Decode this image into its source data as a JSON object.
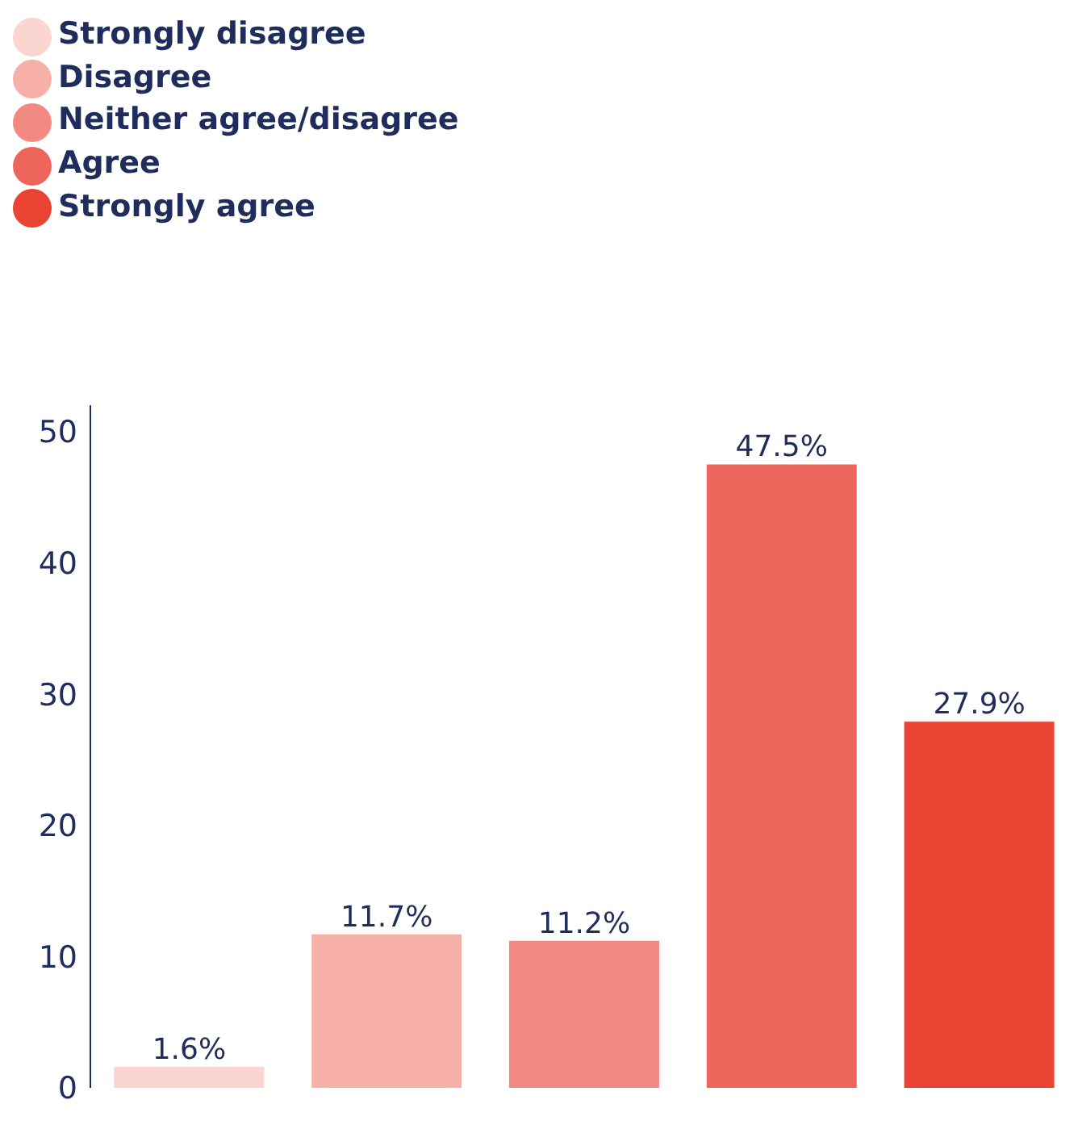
{
  "chart_data": {
    "type": "bar",
    "stacked": true,
    "categories": [
      null,
      null,
      null,
      null,
      null
    ],
    "series": [
      {
        "name": "Strongly disagree",
        "color": "#fbd5cf",
        "values": [
          1.6,
          null,
          null,
          null,
          null
        ],
        "value_labels": [
          "1.6%",
          null,
          null,
          null,
          null
        ]
      },
      {
        "name": "Disagree",
        "color": "#f7b0a8",
        "values": [
          null,
          11.7,
          null,
          null,
          null
        ],
        "value_labels": [
          null,
          "11.7%",
          null,
          null,
          null
        ]
      },
      {
        "name": "Neither agree/disagree",
        "color": "#f38a82",
        "values": [
          null,
          null,
          11.2,
          null,
          null
        ],
        "value_labels": [
          null,
          null,
          "11.2%",
          null,
          null
        ]
      },
      {
        "name": "Agree",
        "color": "#ee665b",
        "values": [
          null,
          null,
          null,
          47.5,
          null
        ],
        "value_labels": [
          null,
          null,
          null,
          "47.5%",
          null
        ]
      },
      {
        "name": "Strongly agree",
        "color": "#ea4333",
        "values": [
          null,
          null,
          null,
          null,
          27.9
        ],
        "value_labels": [
          null,
          null,
          null,
          null,
          "27.9%"
        ]
      }
    ],
    "ylim": [
      0,
      52
    ],
    "yticks": [
      0,
      10,
      20,
      30,
      40,
      50
    ],
    "grid": false,
    "legend": "top"
  }
}
